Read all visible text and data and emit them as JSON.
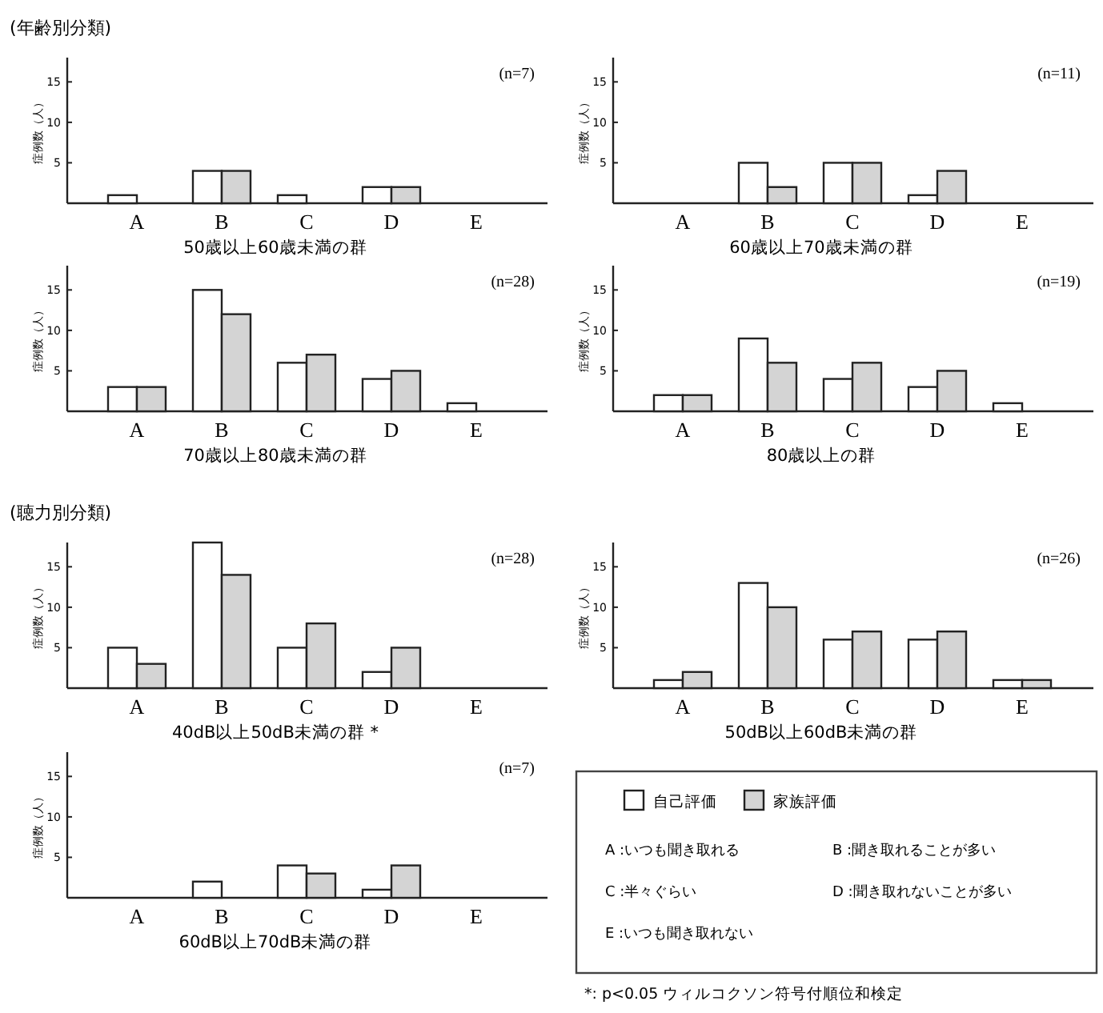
{
  "chart_data": [
    {
      "type": "bar",
      "title": "(年齢別分類)",
      "xlabel": "50歳以上60歳未満の群",
      "ylabel": "症例数（人）",
      "categories": [
        "A",
        "B",
        "C",
        "D",
        "E"
      ],
      "ylim": [
        0,
        18
      ],
      "yticks": [
        5,
        10,
        15
      ],
      "annotations": [
        "(n=7)"
      ],
      "series": [
        {
          "color": "#ffffff",
          "values": [
            1,
            4,
            1,
            2,
            0
          ]
        },
        {
          "color": "#d4d4d4",
          "values": [
            0,
            4,
            0,
            2,
            0
          ]
        }
      ]
    },
    {
      "type": "bar",
      "xlabel": "60歳以上70歳未満の群",
      "ylabel": "症例数（人）",
      "categories": [
        "A",
        "B",
        "C",
        "D",
        "E"
      ],
      "ylim": [
        0,
        18
      ],
      "yticks": [
        5,
        10,
        15
      ],
      "annotations": [
        "(n=11)"
      ],
      "series": [
        {
          "color": "#ffffff",
          "values": [
            0,
            5,
            5,
            1,
            0
          ]
        },
        {
          "color": "#d4d4d4",
          "values": [
            0,
            2,
            5,
            4,
            0
          ]
        }
      ]
    },
    {
      "type": "bar",
      "xlabel": "70歳以上80歳未満の群",
      "ylabel": "症例数（人）",
      "categories": [
        "A",
        "B",
        "C",
        "D",
        "E"
      ],
      "ylim": [
        0,
        18
      ],
      "yticks": [
        5,
        10,
        15
      ],
      "annotations": [
        "(n=28)"
      ],
      "series": [
        {
          "color": "#ffffff",
          "values": [
            3,
            15,
            6,
            4,
            1
          ]
        },
        {
          "color": "#d4d4d4",
          "values": [
            3,
            12,
            7,
            5,
            0
          ]
        }
      ]
    },
    {
      "type": "bar",
      "xlabel": "80歳以上の群",
      "ylabel": "症例数（人）",
      "categories": [
        "A",
        "B",
        "C",
        "D",
        "E"
      ],
      "ylim": [
        0,
        18
      ],
      "yticks": [
        5,
        10,
        15
      ],
      "annotations": [
        "(n=19)"
      ],
      "series": [
        {
          "color": "#ffffff",
          "values": [
            2,
            9,
            4,
            3,
            1
          ]
        },
        {
          "color": "#d4d4d4",
          "values": [
            2,
            6,
            6,
            5,
            0
          ]
        }
      ]
    },
    {
      "type": "bar",
      "title": "(聴力別分類)",
      "xlabel": "40dB以上50dB未満の群 *",
      "ylabel": "症例数（人）",
      "categories": [
        "A",
        "B",
        "C",
        "D",
        "E"
      ],
      "ylim": [
        0,
        18
      ],
      "yticks": [
        5,
        10,
        15
      ],
      "annotations": [
        "(n=28)"
      ],
      "series": [
        {
          "color": "#ffffff",
          "values": [
            5,
            18,
            5,
            2,
            0
          ]
        },
        {
          "color": "#d4d4d4",
          "values": [
            3,
            14,
            8,
            5,
            0
          ]
        }
      ]
    },
    {
      "type": "bar",
      "xlabel": "50dB以上60dB未満の群",
      "ylabel": "症例数（人）",
      "categories": [
        "A",
        "B",
        "C",
        "D",
        "E"
      ],
      "ylim": [
        0,
        18
      ],
      "yticks": [
        5,
        10,
        15
      ],
      "annotations": [
        "(n=26)"
      ],
      "series": [
        {
          "color": "#ffffff",
          "values": [
            1,
            13,
            6,
            6,
            1
          ]
        },
        {
          "color": "#d4d4d4",
          "values": [
            2,
            10,
            7,
            7,
            1
          ]
        }
      ]
    },
    {
      "type": "bar",
      "xlabel": "60dB以上70dB未満の群",
      "ylabel": "症例数（人）",
      "categories": [
        "A",
        "B",
        "C",
        "D",
        "E"
      ],
      "ylim": [
        0,
        18
      ],
      "yticks": [
        5,
        10,
        15
      ],
      "legend": "right",
      "annotations": [
        "(n=7)",
        "A :いつも聞き取れる",
        "B :聞き取れることが多い",
        "C :半々ぐらい",
        "D :聞き取れないことが多い",
        "E :いつも聞き取れない",
        "*: p<0.05 ウィルコクソン符号付順位和検定"
      ],
      "series": [
        {
          "name": "自己評価",
          "color": "#ffffff",
          "values": [
            0,
            2,
            4,
            1,
            0
          ]
        },
        {
          "name": "家族評価",
          "color": "#d4d4d4",
          "values": [
            0,
            0,
            3,
            4,
            0
          ]
        }
      ]
    }
  ]
}
